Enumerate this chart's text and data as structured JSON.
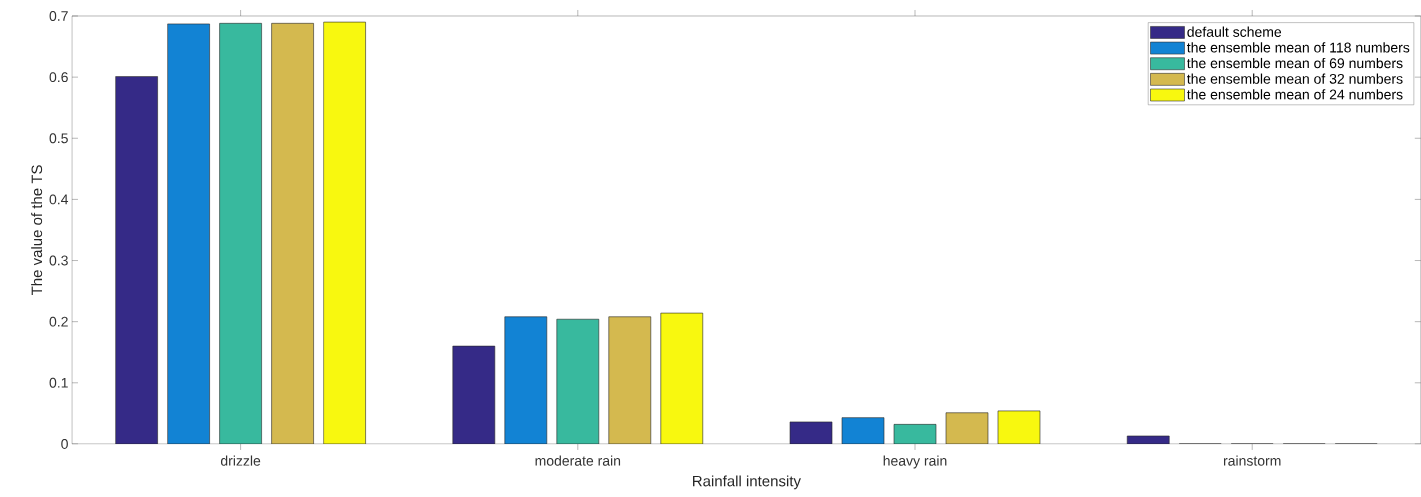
{
  "chart_data": {
    "type": "bar",
    "xlabel": "Rainfall intensity",
    "ylabel": "The value of the TS",
    "categories": [
      "drizzle",
      "moderate rain",
      "heavy rain",
      "rainstorm"
    ],
    "series": [
      {
        "name": "default scheme",
        "color": "#352a87",
        "values": [
          0.601,
          0.16,
          0.036,
          0.013
        ]
      },
      {
        "name": "the ensemble mean of 118 numbers",
        "color": "#1283d4",
        "values": [
          0.687,
          0.208,
          0.043,
          0
        ]
      },
      {
        "name": "the ensemble mean of 69 numbers",
        "color": "#38b99e",
        "values": [
          0.688,
          0.204,
          0.032,
          0
        ]
      },
      {
        "name": "the ensemble mean of 32 numbers",
        "color": "#d4b94f",
        "values": [
          0.688,
          0.208,
          0.051,
          0
        ]
      },
      {
        "name": "the ensemble mean of 24 numbers",
        "color": "#f8f80f",
        "values": [
          0.69,
          0.214,
          0.054,
          0
        ]
      }
    ],
    "ylim": [
      0,
      0.7
    ],
    "yticks": [
      0,
      0.1,
      0.2,
      0.3,
      0.4,
      0.5,
      0.6,
      0.7
    ],
    "grid": false,
    "legend": "top right"
  }
}
